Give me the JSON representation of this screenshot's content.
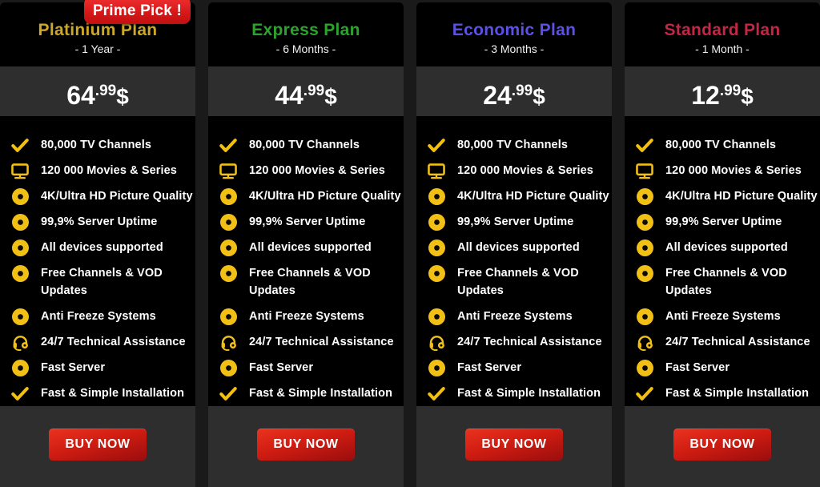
{
  "badge": {
    "label": "Prime Pick !",
    "bg_color": "#d51717"
  },
  "buy_button_label": "BUY NOW",
  "plans": [
    {
      "name": "Platinium Plan",
      "color": "#cda727",
      "duration": "- 1 Year -",
      "price": {
        "int": "64",
        "cents": ".99",
        "currency": "$"
      },
      "featured": true
    },
    {
      "name": "Express Plan",
      "color": "#2ca32c",
      "duration": "- 6 Months -",
      "price": {
        "int": "44",
        "cents": ".99",
        "currency": "$"
      },
      "featured": false
    },
    {
      "name": "Economic Plan",
      "color": "#5b51e6",
      "duration": "- 3 Months -",
      "price": {
        "int": "24",
        "cents": ".99",
        "currency": "$"
      },
      "featured": false
    },
    {
      "name": "Standard Plan",
      "color": "#c22745",
      "duration": "- 1 Month -",
      "price": {
        "int": "12",
        "cents": ".99",
        "currency": "$"
      },
      "featured": false
    }
  ],
  "shared_features": [
    {
      "icon": "check-icon",
      "text": "80,000 TV Channels"
    },
    {
      "icon": "tv-icon",
      "text": "120 000 Movies & Series"
    },
    {
      "icon": "dot-icon",
      "text": "4K/Ultra HD Picture Quality"
    },
    {
      "icon": "dot-icon",
      "text": "99,9% Server Uptime"
    },
    {
      "icon": "dot-icon",
      "text": "All devices supported"
    },
    {
      "icon": "dot-icon",
      "text": "Free Channels & VOD\nUpdates"
    },
    {
      "icon": "dot-icon",
      "text": "Anti Freeze Systems"
    },
    {
      "icon": "headset-icon",
      "text": "24/7 Technical Assistance"
    },
    {
      "icon": "dot-icon",
      "text": "Fast Server"
    },
    {
      "icon": "check-icon",
      "text": "Fast & Simple Installation"
    }
  ],
  "colors": {
    "page_bg": "#1a1a1a",
    "card_bg": "#000000",
    "band_bg": "#2e2e2e",
    "feature_icon": "#f2c014",
    "button_red": "#d01d12",
    "text": "#ffffff"
  }
}
